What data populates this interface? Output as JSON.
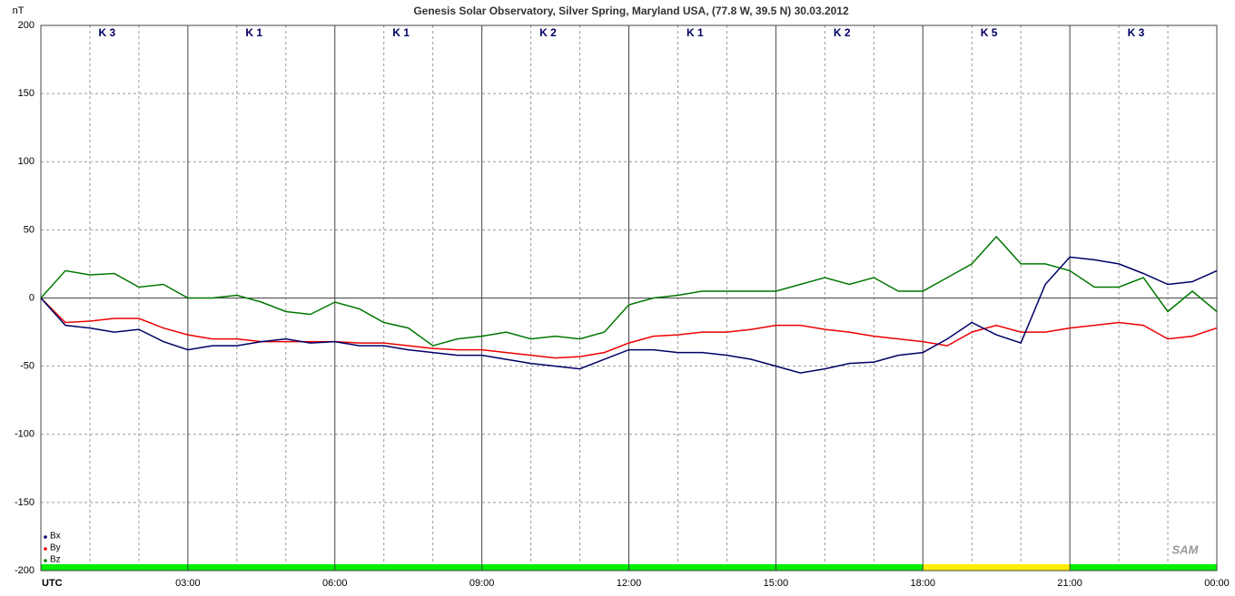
{
  "chart_data": {
    "type": "line",
    "title": "Genesis Solar Observatory, Silver Spring, Maryland USA, (77.8 W, 39.5 N)  30.03.2012",
    "y_label": "nT",
    "x_label": "UTC",
    "logo": "SAM",
    "xlim": [
      0,
      24
    ],
    "xticks": [
      {
        "value": 3,
        "label": "03:00"
      },
      {
        "value": 6,
        "label": "06:00"
      },
      {
        "value": 9,
        "label": "09:00"
      },
      {
        "value": 12,
        "label": "12:00"
      },
      {
        "value": 15,
        "label": "15:00"
      },
      {
        "value": 18,
        "label": "18:00"
      },
      {
        "value": 21,
        "label": "21:00"
      },
      {
        "value": 24,
        "label": "00:00"
      }
    ],
    "ylim": [
      -200,
      200
    ],
    "yticks": [
      -200,
      -150,
      -100,
      -50,
      0,
      50,
      100,
      150,
      200
    ],
    "grid": true,
    "legend": "bottom-left",
    "k_labels": [
      "K 3",
      "K 1",
      "K 1",
      "K 2",
      "K 1",
      "K 2",
      "K 5",
      "K 3"
    ],
    "k_bar_colors": [
      "#00ee00",
      "#00ee00",
      "#00ee00",
      "#00ee00",
      "#00ee00",
      "#00ee00",
      "#ffee00",
      "#00ee00"
    ],
    "x": [
      0,
      0.5,
      1,
      1.5,
      2,
      2.5,
      3,
      3.5,
      4,
      4.5,
      5,
      5.5,
      6,
      6.5,
      7,
      7.5,
      8,
      8.5,
      9,
      9.5,
      10,
      10.5,
      11,
      11.5,
      12,
      12.5,
      13,
      13.5,
      14,
      14.5,
      15,
      15.5,
      16,
      16.5,
      17,
      17.5,
      18,
      18.5,
      19,
      19.5,
      20,
      20.5,
      21,
      21.5,
      22,
      22.5,
      23,
      23.5,
      24
    ],
    "series": [
      {
        "name": "Bx",
        "color": "#000066",
        "values": [
          0,
          -20,
          -22,
          -25,
          -23,
          -32,
          -38,
          -35,
          -35,
          -32,
          -30,
          -33,
          -32,
          -35,
          -35,
          -38,
          -40,
          -42,
          -42,
          -45,
          -48,
          -50,
          -52,
          -45,
          -38,
          -38,
          -40,
          -40,
          -42,
          -45,
          -50,
          -55,
          -52,
          -48,
          -47,
          -42,
          -40,
          -30,
          -18,
          -27,
          -33,
          10,
          30,
          28,
          25,
          18,
          10,
          12,
          20
        ]
      },
      {
        "name": "By",
        "color": "#ee0000",
        "values": [
          0,
          -18,
          -17,
          -15,
          -15,
          -22,
          -27,
          -30,
          -30,
          -32,
          -32,
          -32,
          -32,
          -33,
          -33,
          -35,
          -37,
          -38,
          -38,
          -40,
          -42,
          -44,
          -43,
          -40,
          -33,
          -28,
          -27,
          -25,
          -25,
          -23,
          -20,
          -20,
          -23,
          -25,
          -28,
          -30,
          -32,
          -35,
          -25,
          -20,
          -25,
          -25,
          -22,
          -20,
          -18,
          -20,
          -30,
          -28,
          -22
        ]
      },
      {
        "name": "Bz",
        "color": "#007700",
        "values": [
          0,
          20,
          17,
          18,
          8,
          10,
          0,
          0,
          2,
          -3,
          -10,
          -12,
          -3,
          -8,
          -18,
          -22,
          -35,
          -30,
          -28,
          -25,
          -30,
          -28,
          -30,
          -25,
          -5,
          0,
          2,
          5,
          5,
          5,
          5,
          10,
          15,
          10,
          15,
          5,
          5,
          15,
          25,
          45,
          25,
          25,
          20,
          8,
          8,
          15,
          -10,
          5,
          -10
        ]
      }
    ]
  }
}
